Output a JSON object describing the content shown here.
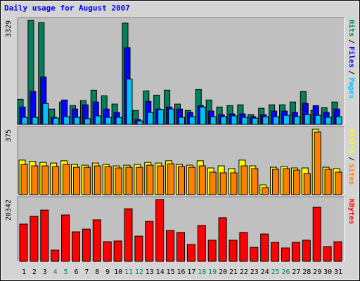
{
  "chart_data": [
    {
      "type": "bar",
      "title": "Daily usage for August 2007",
      "legend_separator": "/",
      "series": [
        {
          "name": "Hits",
          "color": "#00805c",
          "values": [
            800,
            3329,
            3260,
            490,
            715,
            600,
            760,
            1095,
            915,
            650,
            3240,
            445,
            1070,
            935,
            1095,
            650,
            445,
            1115,
            780,
            555,
            600,
            625,
            310,
            515,
            625,
            625,
            715,
            1050,
            445,
            535,
            715
          ]
        },
        {
          "name": "Files",
          "color": "#0000ff",
          "values": [
            555,
            1050,
            1515,
            225,
            780,
            490,
            625,
            715,
            490,
            380,
            2455,
            155,
            735,
            490,
            555,
            490,
            380,
            600,
            425,
            310,
            335,
            335,
            245,
            310,
            425,
            425,
            380,
            670,
            600,
            380,
            490
          ]
        },
        {
          "name": "Pages",
          "color": "#00c0ff",
          "values": [
            225,
            225,
            670,
            200,
            245,
            225,
            180,
            270,
            225,
            225,
            1450,
            110,
            380,
            470,
            490,
            225,
            245,
            555,
            245,
            245,
            270,
            225,
            200,
            245,
            245,
            290,
            245,
            310,
            290,
            225,
            245
          ]
        }
      ],
      "ylim": [
        0,
        3329
      ],
      "yticks": [
        3329
      ]
    },
    {
      "type": "bar",
      "legend_separator": "/",
      "series": [
        {
          "name": "Visits",
          "color": "#ffff00",
          "values": [
            198,
            190,
            185,
            181,
            194,
            173,
            169,
            181,
            173,
            165,
            169,
            173,
            185,
            181,
            194,
            173,
            169,
            194,
            153,
            165,
            149,
            198,
            165,
            56,
            157,
            161,
            153,
            153,
            375,
            157,
            149
          ]
        },
        {
          "name": "Sites",
          "color": "#ff8000",
          "values": [
            173,
            165,
            165,
            161,
            173,
            157,
            157,
            165,
            161,
            153,
            157,
            157,
            169,
            165,
            177,
            161,
            157,
            165,
            129,
            125,
            125,
            165,
            149,
            40,
            145,
            149,
            141,
            121,
            359,
            145,
            129
          ]
        }
      ],
      "ylim": [
        0,
        375
      ],
      "yticks": [
        375
      ]
    },
    {
      "type": "bar",
      "categories": [
        "1",
        "2",
        "3",
        "4",
        "5",
        "6",
        "7",
        "8",
        "9",
        "10",
        "11",
        "12",
        "13",
        "14",
        "15",
        "16",
        "17",
        "18",
        "19",
        "20",
        "21",
        "22",
        "23",
        "24",
        "25",
        "26",
        "27",
        "28",
        "29",
        "30",
        "31"
      ],
      "category_colors": [
        "#000000",
        "#000000",
        "#000000",
        "#00805c",
        "#00805c",
        "#000000",
        "#000000",
        "#000000",
        "#000000",
        "#000000",
        "#00805c",
        "#00805c",
        "#000000",
        "#000000",
        "#000000",
        "#000000",
        "#000000",
        "#00805c",
        "#00805c",
        "#000000",
        "#000000",
        "#000000",
        "#000000",
        "#000000",
        "#00805c",
        "#00805c",
        "#000000",
        "#000000",
        "#000000",
        "#000000",
        "#000000"
      ],
      "series": [
        {
          "name": "KBytes",
          "color": "#ff0000",
          "values": [
            12250,
            14800,
            16850,
            3700,
            15250,
            9700,
            10600,
            13650,
            6450,
            6700,
            17300,
            8300,
            13150,
            20342,
            10150,
            9500,
            5550,
            11800,
            6950,
            14350,
            6950,
            9500,
            4600,
            9000,
            6250,
            4400,
            6250,
            6950,
            17800,
            4850,
            6450
          ]
        }
      ],
      "ylim": [
        0,
        20342
      ],
      "yticks": [
        20342
      ]
    }
  ]
}
